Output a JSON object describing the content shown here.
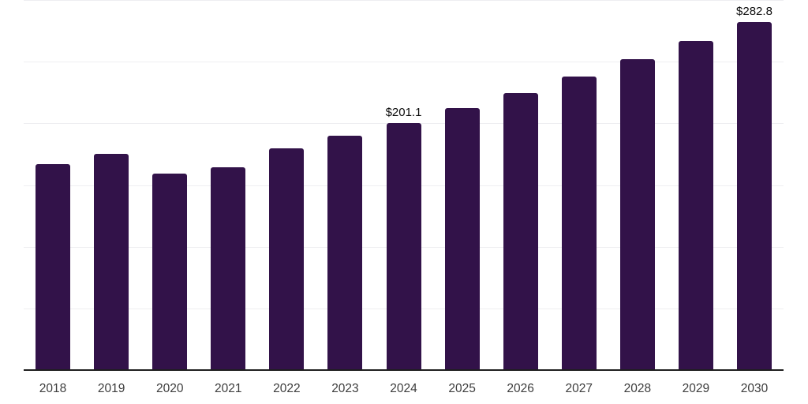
{
  "chart_data": {
    "type": "bar",
    "title": "",
    "xlabel": "",
    "ylabel": "",
    "categories": [
      "2018",
      "2019",
      "2020",
      "2021",
      "2022",
      "2023",
      "2024",
      "2025",
      "2026",
      "2027",
      "2028",
      "2029",
      "2030"
    ],
    "values": [
      167.4,
      176.2,
      159.9,
      164.9,
      180.3,
      190.6,
      201.1,
      212.9,
      225.3,
      238.5,
      252.4,
      267.2,
      282.8
    ],
    "data_labels": {
      "2024": "$201.1",
      "2030": "$282.8"
    },
    "ylim": [
      0,
      300
    ],
    "gridline_step": 50,
    "grid": true,
    "legend": false,
    "colors": {
      "bar": "#321249",
      "gridline": "#eeeef1",
      "axis_line": "#1f1f1f",
      "tick_label": "#3d3d3d",
      "data_label": "#0d0d0d"
    }
  }
}
